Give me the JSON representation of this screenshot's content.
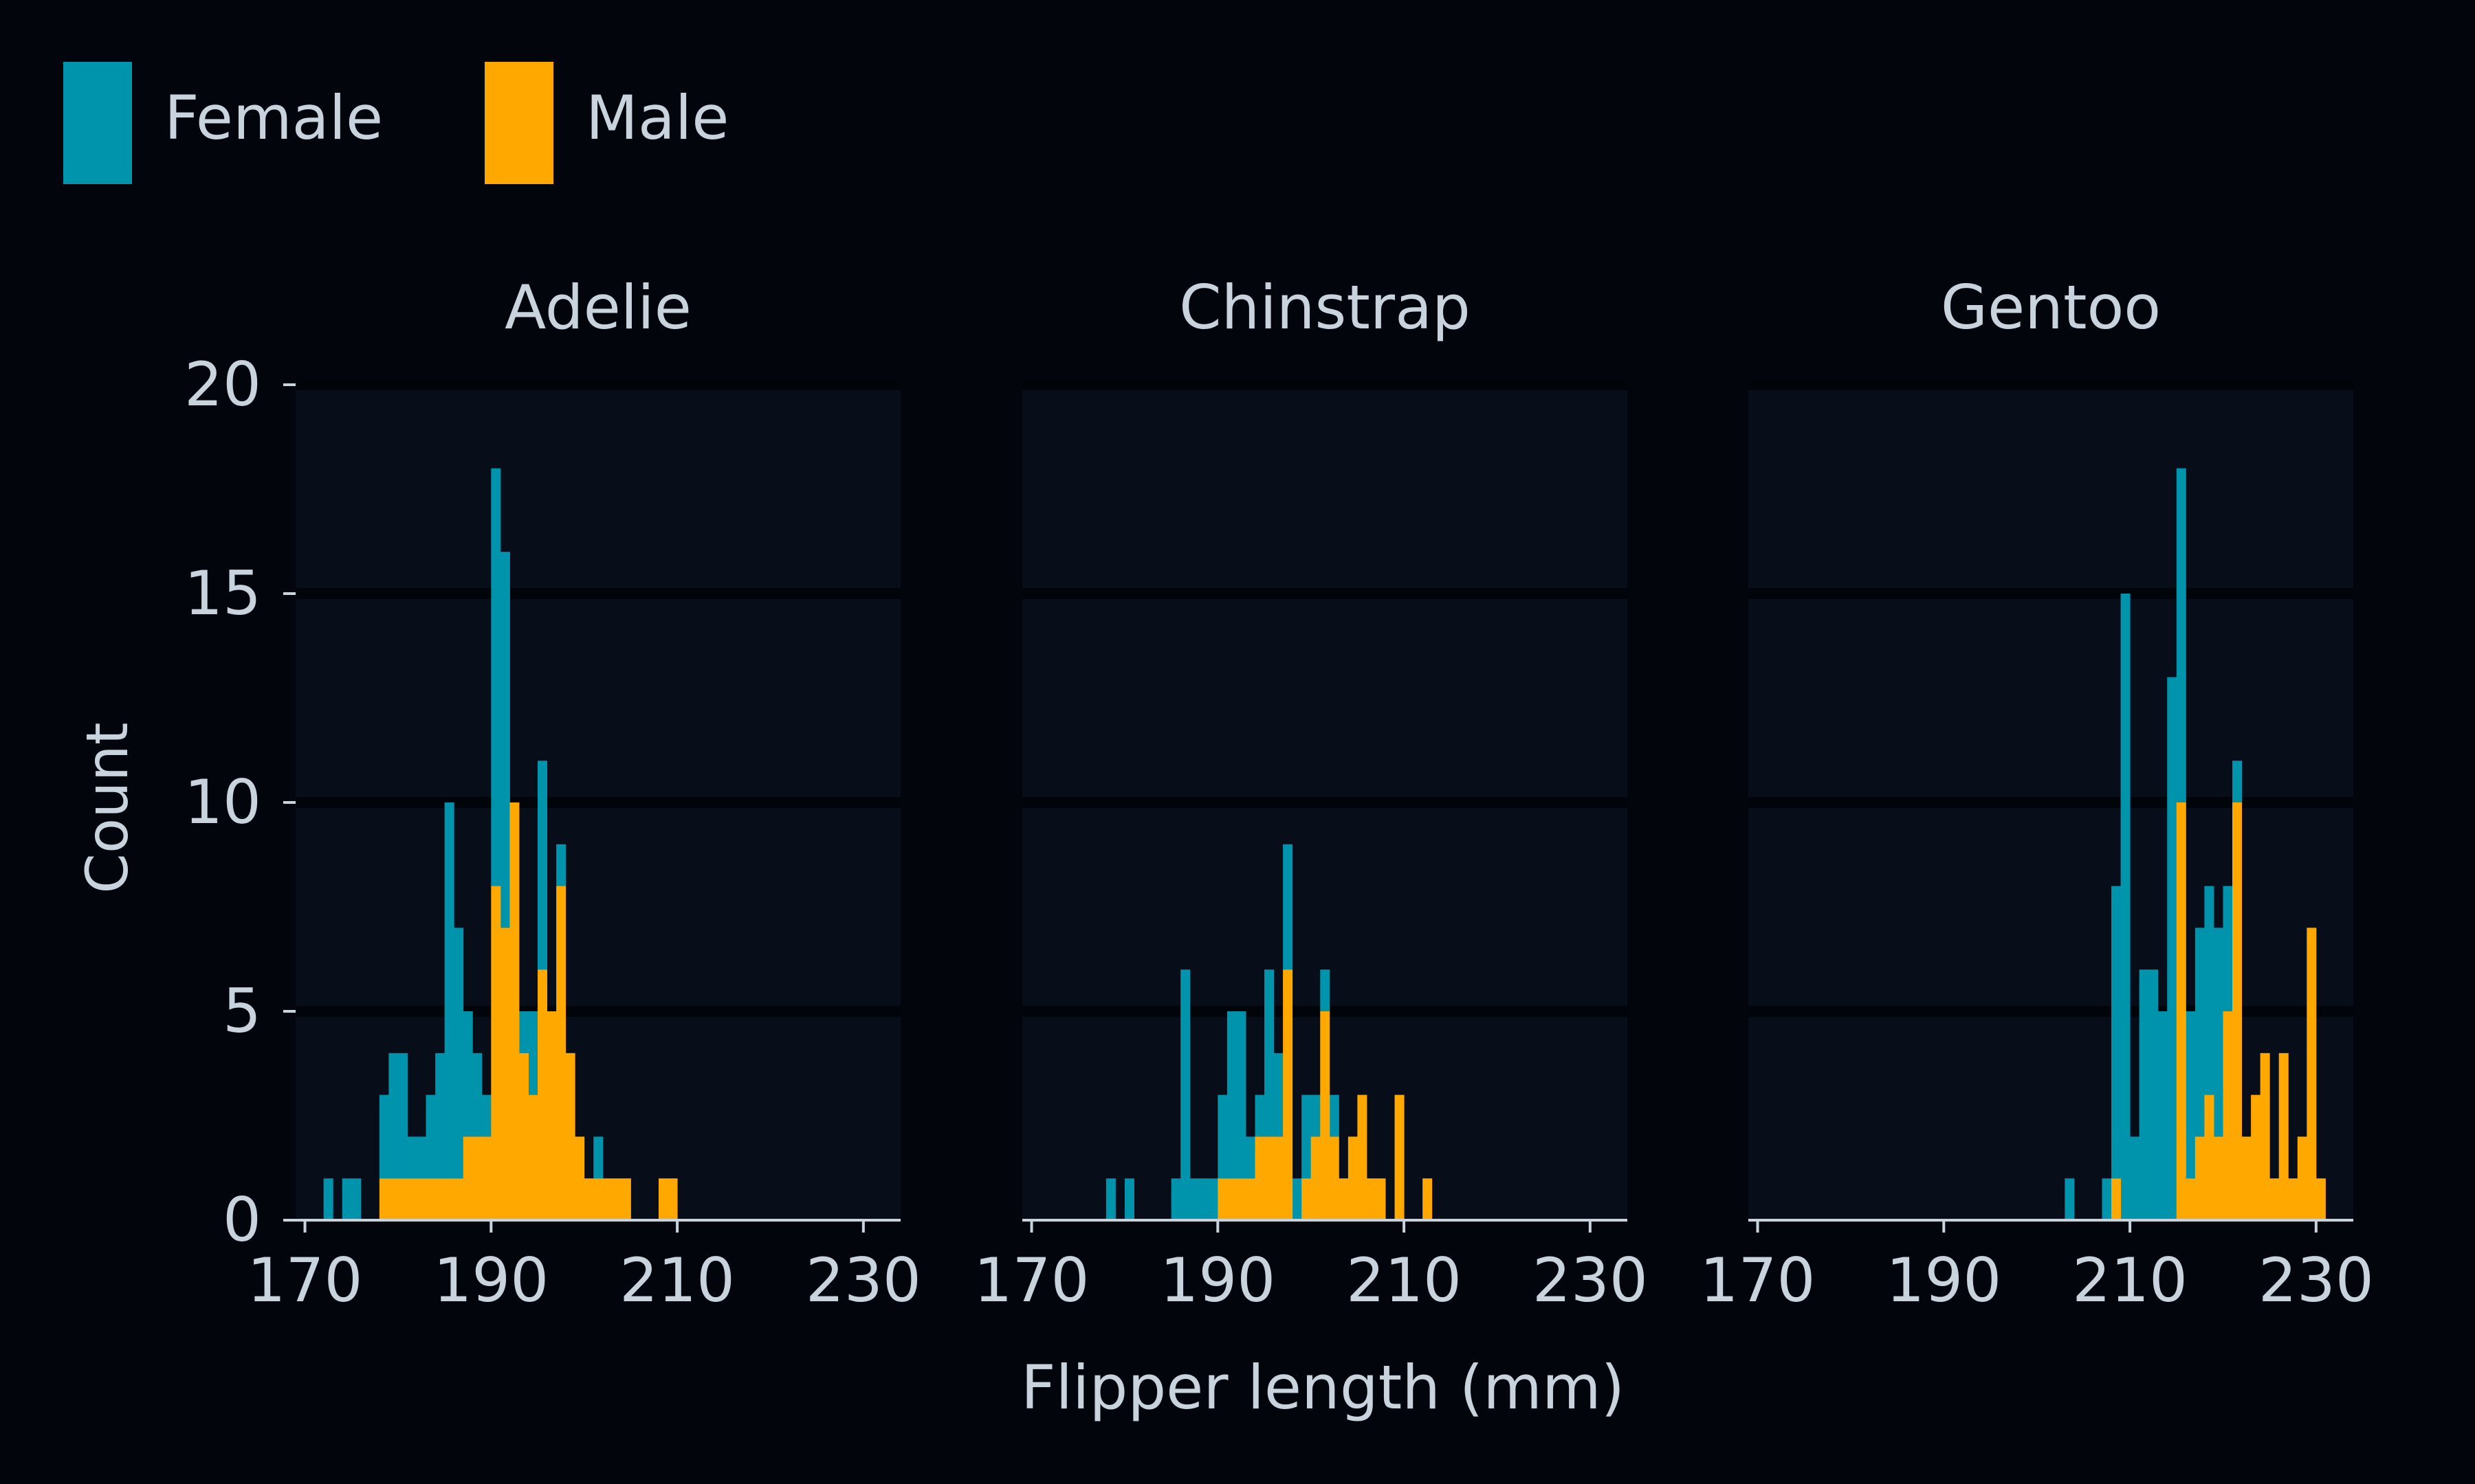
{
  "colors": {
    "background": "#02050c",
    "panel_bg": "#070d19",
    "grid": "#010409",
    "axis": "#c9d3dd",
    "text": "#c9d3dd",
    "female": "#0093ac",
    "male": "#ffa800"
  },
  "chart_data": {
    "type": "bar",
    "stacked": true,
    "binwidth": 1,
    "xlabel": "Flipper length (mm)",
    "ylabel": "Count",
    "xlim": [
      169,
      234
    ],
    "ylim": [
      0,
      20
    ],
    "xticks": [
      170,
      190,
      210,
      230
    ],
    "yticks": [
      0,
      5,
      10,
      15,
      20
    ],
    "grid": "horizontal",
    "legend": {
      "position": "top-left",
      "entries": [
        {
          "key": "female",
          "label": "Female"
        },
        {
          "key": "male",
          "label": "Male"
        }
      ]
    },
    "panels": [
      {
        "title": "Adelie",
        "series": {
          "female": {
            "x": [
              172,
              174,
              175,
              178,
              179,
              180,
              181,
              182,
              183,
              184,
              185,
              186,
              187,
              188,
              189,
              190,
              191,
              193,
              194,
              195,
              196,
              197,
              198,
              199,
              201
            ],
            "y": [
              1,
              1,
              1,
              2,
              3,
              3,
              1,
              1,
              2,
              3,
              9,
              6,
              3,
              2,
              1,
              10,
              9,
              1,
              2,
              5,
              0,
              1,
              0,
              0,
              1
            ]
          },
          "male": {
            "x": [
              178,
              179,
              180,
              181,
              182,
              183,
              184,
              185,
              186,
              187,
              188,
              189,
              190,
              191,
              192,
              193,
              194,
              195,
              196,
              197,
              198,
              199,
              200,
              201,
              202,
              203,
              204,
              208,
              209
            ],
            "y": [
              1,
              1,
              1,
              1,
              1,
              1,
              1,
              1,
              1,
              2,
              2,
              2,
              8,
              7,
              10,
              4,
              3,
              6,
              5,
              8,
              4,
              2,
              1,
              1,
              1,
              1,
              1,
              1,
              1
            ]
          }
        }
      },
      {
        "title": "Chinstrap",
        "series": {
          "female": {
            "x": [
              178,
              180,
              185,
              186,
              187,
              188,
              189,
              190,
              191,
              192,
              193,
              194,
              195,
              196,
              197,
              198,
              199,
              200,
              201,
              202
            ],
            "y": [
              1,
              1,
              1,
              6,
              1,
              1,
              1,
              2,
              4,
              4,
              1,
              1,
              4,
              2,
              3,
              1,
              2,
              1,
              1,
              1
            ]
          },
          "male": {
            "x": [
              186,
              189,
              190,
              191,
              192,
              193,
              194,
              195,
              196,
              197,
              198,
              199,
              200,
              201,
              202,
              203,
              204,
              205,
              206,
              207,
              209,
              212
            ],
            "y": [
              0,
              0,
              1,
              1,
              1,
              1,
              2,
              2,
              2,
              6,
              0,
              1,
              2,
              5,
              2,
              1,
              2,
              3,
              1,
              1,
              3,
              1
            ]
          }
        }
      },
      {
        "title": "Gentoo",
        "series": {
          "female": {
            "x": [
              203,
              207,
              208,
              209,
              210,
              211,
              212,
              213,
              214,
              215,
              216,
              217,
              218,
              219,
              220,
              221
            ],
            "y": [
              1,
              1,
              7,
              15,
              2,
              6,
              6,
              5,
              13,
              8,
              4,
              5,
              5,
              5,
              3,
              1
            ]
          },
          "male": {
            "x": [
              208,
              209,
              210,
              211,
              212,
              213,
              214,
              215,
              216,
              217,
              218,
              219,
              220,
              221,
              222,
              223,
              224,
              225,
              226,
              227,
              228,
              229,
              230,
              231
            ],
            "y": [
              1,
              0,
              0,
              0,
              0,
              0,
              0,
              10,
              1,
              2,
              3,
              2,
              5,
              10,
              2,
              3,
              4,
              1,
              4,
              1,
              2,
              7,
              1,
              0
            ]
          }
        }
      }
    ]
  }
}
